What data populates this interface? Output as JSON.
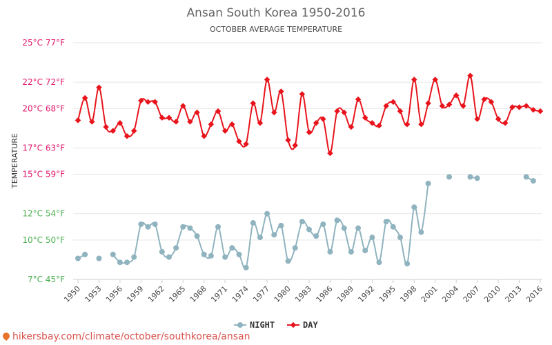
{
  "chart_data": {
    "type": "line",
    "title": "Ansan South Korea 1950-2016",
    "subtitle": "OCTOBER AVERAGE TEMPERATURE",
    "ylabel": "TEMPERATURE",
    "ylim": [
      7,
      25
    ],
    "y_ticks": [
      {
        "value": 25,
        "label": "25°C 77°F",
        "color": "#e0196c"
      },
      {
        "value": 22,
        "label": "22°C 72°F",
        "color": "#e0196c"
      },
      {
        "value": 20,
        "label": "20°C 68°F",
        "color": "#e0196c"
      },
      {
        "value": 17,
        "label": "17°C 63°F",
        "color": "#e0196c"
      },
      {
        "value": 15,
        "label": "15°C 59°F",
        "color": "#e0196c"
      },
      {
        "value": 12,
        "label": "12°C 54°F",
        "color": "#4caf50"
      },
      {
        "value": 10,
        "label": "10°C 50°F",
        "color": "#4caf50"
      },
      {
        "value": 7,
        "label": "7°C 45°F",
        "color": "#4caf50"
      }
    ],
    "x_ticks": [
      1950,
      1953,
      1956,
      1959,
      1962,
      1965,
      1968,
      1971,
      1974,
      1977,
      1980,
      1983,
      1986,
      1989,
      1992,
      1995,
      1998,
      2001,
      2004,
      2007,
      2010,
      2013,
      2016
    ],
    "xlim": [
      1950,
      2016
    ],
    "grid": true,
    "legend_position": "bottom",
    "series": [
      {
        "name": "NIGHT",
        "color": "#8fb3bf",
        "x": [
          1950,
          1951,
          1953,
          1955,
          1956,
          1957,
          1958,
          1959,
          1960,
          1961,
          1962,
          1963,
          1964,
          1965,
          1966,
          1967,
          1968,
          1969,
          1970,
          1971,
          1972,
          1973,
          1974,
          1975,
          1976,
          1977,
          1978,
          1979,
          1980,
          1981,
          1982,
          1983,
          1984,
          1985,
          1986,
          1987,
          1988,
          1989,
          1990,
          1991,
          1992,
          1993,
          1994,
          1995,
          1996,
          1997,
          1998,
          1999,
          2000,
          2003,
          2006,
          2007,
          2014,
          2015
        ],
        "values": [
          8.6,
          8.9,
          8.6,
          8.9,
          8.3,
          8.3,
          8.7,
          11.2,
          11,
          11.2,
          9.1,
          8.7,
          9.4,
          11,
          10.9,
          10.3,
          8.9,
          8.8,
          11,
          8.7,
          9.4,
          8.9,
          7.9,
          11.3,
          10.2,
          12,
          10.4,
          11.1,
          8.4,
          9.4,
          11.4,
          10.8,
          10.3,
          11.2,
          9.1,
          11.5,
          10.9,
          9.1,
          10.9,
          9.2,
          10.2,
          8.3,
          11.4,
          11,
          10.2,
          8.2,
          12.5,
          10.6,
          14.3,
          14.8,
          14.8,
          14.7,
          14.8,
          14.5
        ]
      },
      {
        "name": "DAY",
        "color": "#e8131b",
        "x": [
          1950,
          1951,
          1952,
          1953,
          1954,
          1955,
          1956,
          1957,
          1958,
          1959,
          1960,
          1961,
          1962,
          1963,
          1964,
          1965,
          1966,
          1967,
          1968,
          1969,
          1970,
          1971,
          1972,
          1973,
          1974,
          1975,
          1976,
          1977,
          1978,
          1979,
          1980,
          1981,
          1982,
          1983,
          1984,
          1985,
          1986,
          1987,
          1988,
          1989,
          1990,
          1991,
          1992,
          1993,
          1994,
          1995,
          1996,
          1997,
          1998,
          1999,
          2000,
          2001,
          2002,
          2003,
          2004,
          2005,
          2006,
          2007,
          2008,
          2009,
          2010,
          2011,
          2012,
          2013,
          2014,
          2015,
          2016
        ],
        "values": [
          19.1,
          20.8,
          19,
          21.6,
          18.6,
          18.3,
          18.9,
          17.9,
          18.3,
          20.6,
          20.5,
          20.5,
          19.3,
          19.3,
          19,
          20.2,
          19,
          19.7,
          17.9,
          18.8,
          19.8,
          18.3,
          18.8,
          17.5,
          17.3,
          20.4,
          18.9,
          22.2,
          19.7,
          21.3,
          17.6,
          17.2,
          21.1,
          18.2,
          18.9,
          19.2,
          16.6,
          19.8,
          19.7,
          18.6,
          20.7,
          19.3,
          18.9,
          18.7,
          20.2,
          20.5,
          19.8,
          18.8,
          22.2,
          18.8,
          20.4,
          22.2,
          20.2,
          20.3,
          21,
          20.2,
          22.5,
          19.2,
          20.7,
          20.5,
          19.2,
          18.9,
          20.1,
          20.1,
          20.2,
          19.9,
          19.8
        ]
      }
    ]
  },
  "legend": {
    "night_label": "NIGHT",
    "day_label": "DAY"
  },
  "footer": {
    "url_text": "hikersbay.com/climate/october/southkorea/ansan"
  }
}
